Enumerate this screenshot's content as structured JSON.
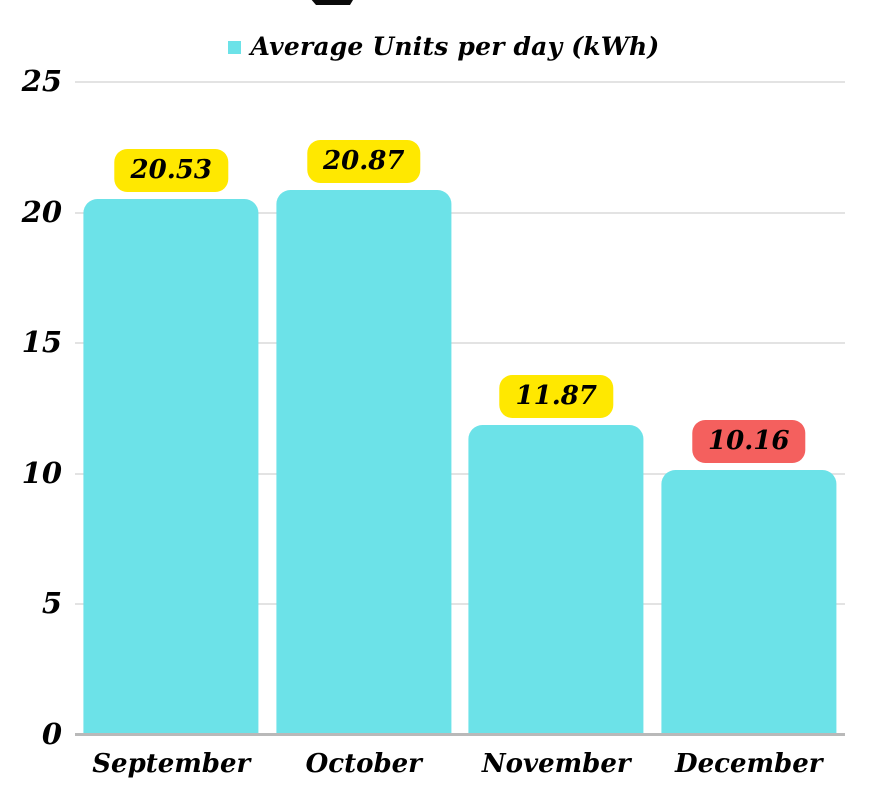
{
  "colors": {
    "bar": "#6ce2e8",
    "label_yellow": "#ffe800",
    "label_red": "#f4605e",
    "gridline": "#e3e3e3",
    "baseline": "#b9b9b9",
    "text": "#000000",
    "title_fragment": "#0a0a0a"
  },
  "chart_data": {
    "type": "bar",
    "title": "",
    "legend": {
      "label": "Average Units per day (kWh)",
      "marker_color": "#6ce2e8",
      "position": "top-center"
    },
    "categories": [
      "September",
      "October",
      "November",
      "December"
    ],
    "values": [
      20.53,
      20.87,
      11.87,
      10.16
    ],
    "data_labels": [
      "20.53",
      "20.87",
      "11.87",
      "10.16"
    ],
    "data_label_colors": [
      "#ffe800",
      "#ffe800",
      "#ffe800",
      "#f4605e"
    ],
    "bar_color": "#6ce2e8",
    "xlabel": "",
    "ylabel": "",
    "ylim": [
      0,
      25
    ],
    "yticks": [
      0,
      5,
      10,
      15,
      20,
      25
    ],
    "ytick_labels": [
      "0",
      "5",
      "10",
      "15",
      "20",
      "25"
    ],
    "grid": true
  }
}
